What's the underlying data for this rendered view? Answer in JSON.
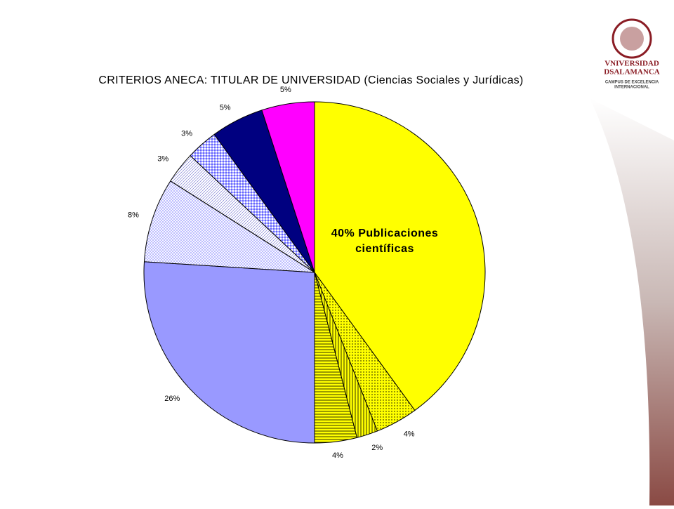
{
  "chart_data": {
    "type": "pie",
    "title": "CRITERIOS ANECA: TITULAR DE UNIVERSIDAD (Ciencias Sociales y Jurídicas)",
    "values": [
      40,
      4,
      2,
      4,
      26,
      8,
      3,
      3,
      5,
      5
    ],
    "value_labels": [
      "40% Publicaciones científicas",
      "4%",
      "2%",
      "4%",
      "26%",
      "8%",
      "3%",
      "3%",
      "5%",
      "5%"
    ],
    "colors": [
      "#ffff00",
      "#ffff00",
      "#ffff00",
      "#ffff00",
      "#9999ff",
      "#ffffff",
      "#ffffff",
      "#ffffff",
      "#000080",
      "#ff00ff"
    ],
    "patterns": [
      "solid",
      "dots",
      "vertical",
      "horizontal",
      "solid",
      "crosshatch",
      "diagonal",
      "checker",
      "solid",
      "solid"
    ]
  },
  "logo": {
    "line1": "VNIVERSIDAD",
    "line2": "DSALAMANCA",
    "line3": "CAMPUS DE EXCELENCIA",
    "line4": "INTERNACIONAL"
  }
}
